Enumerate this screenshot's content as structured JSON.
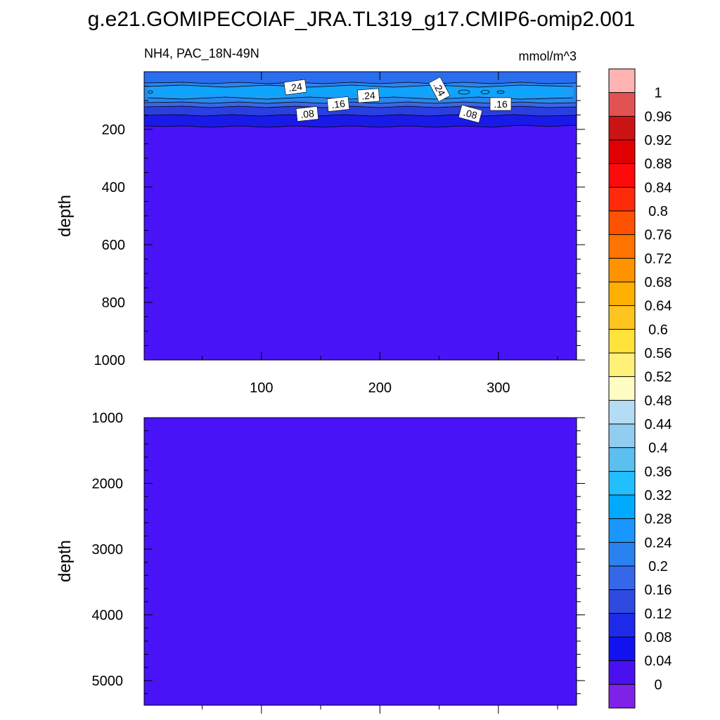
{
  "title": "g.e21.GOMIPECOIAF_JRA.TL319_g17.CMIP6-omip2.001",
  "subtitle_left": "NH4, PAC_18N-49N",
  "subtitle_right": "mmol/m^3",
  "colors": {
    "deep_fill": "#4814f7",
    "band_008": "#1a1ae8",
    "band_012": "#2b3fe0",
    "band_016": "#3a66e6",
    "band_020": "#2a86ef",
    "band_024": "#1b9ef8",
    "band_028": "#0aa7ff"
  },
  "chart_data": [
    {
      "type": "heatmap",
      "panel": "upper",
      "ylabel": "depth",
      "x_ticks": [
        "100",
        "200",
        "300"
      ],
      "y_ticks": [
        "200",
        "400",
        "600",
        "800",
        "1000"
      ],
      "xlim": [
        1,
        366
      ],
      "ylim": [
        1000,
        0
      ],
      "contour_labels": [
        ".24",
        ".16",
        ".24",
        ".08",
        ".24",
        ".08",
        ".16"
      ]
    },
    {
      "type": "heatmap",
      "panel": "lower",
      "ylabel": "depth",
      "y_ticks": [
        "1000",
        "2000",
        "3000",
        "4000",
        "5000"
      ],
      "xlim": [
        1,
        366
      ],
      "ylim": [
        5375,
        1000
      ]
    }
  ],
  "colorbar": {
    "labels": [
      "1",
      "0.96",
      "0.92",
      "0.88",
      "0.84",
      "0.8",
      "0.76",
      "0.72",
      "0.68",
      "0.64",
      "0.6",
      "0.56",
      "0.52",
      "0.48",
      "0.44",
      "0.4",
      "0.36",
      "0.32",
      "0.28",
      "0.24",
      "0.2",
      "0.16",
      "0.12",
      "0.08",
      "0.04",
      "0"
    ],
    "colors": [
      "#ffb3b3",
      "#e35252",
      "#cc1414",
      "#e00000",
      "#ff0a0a",
      "#ff2a0a",
      "#ff5200",
      "#ff7300",
      "#ff9400",
      "#ffb000",
      "#ffc420",
      "#ffe23a",
      "#fff07a",
      "#fffcc4",
      "#b5dcf5",
      "#90cdf0",
      "#5bbff0",
      "#22bfff",
      "#00aaff",
      "#1a96ff",
      "#2a82f0",
      "#3568e8",
      "#2f4ae0",
      "#1e2ae8",
      "#1212f0",
      "#4a10f0",
      "#7f22e8"
    ]
  }
}
